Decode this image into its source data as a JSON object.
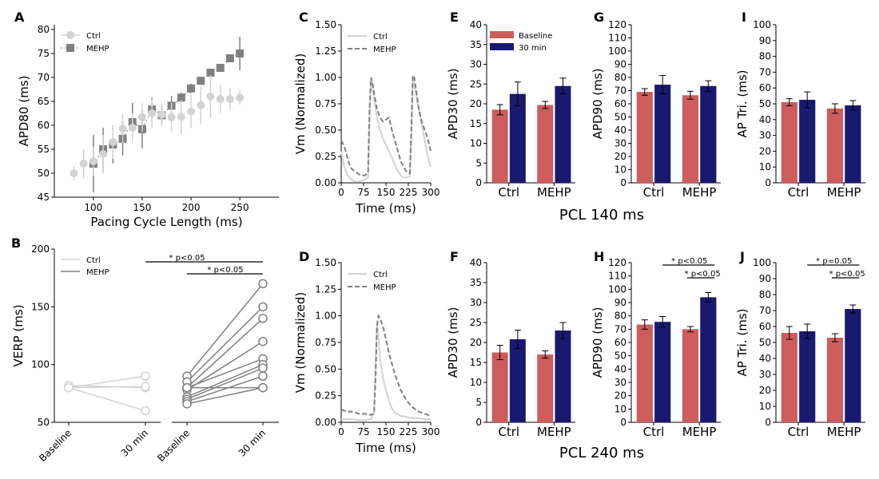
{
  "figure": {
    "row_titles": [
      "PCL 140 ms",
      "PCL 240 ms"
    ],
    "colors": {
      "ctrl": "#d3d3d3",
      "mehp": "#808080",
      "baseline": "#cd5c5c",
      "thirty": "#191970"
    }
  },
  "chart_data": [
    {
      "panel": "A",
      "type": "scatter",
      "xlabel": "Pacing Cycle Length (ms)",
      "ylabel": "APD80 (ms)",
      "xlim": [
        60,
        290
      ],
      "ylim": [
        45,
        81
      ],
      "xticks": [
        100,
        150,
        200,
        250
      ],
      "yticks": [
        45,
        50,
        55,
        60,
        65,
        70,
        75,
        80
      ],
      "legend": [
        "Ctrl",
        "MEHP"
      ],
      "series": [
        {
          "name": "Ctrl",
          "marker": "circle",
          "x": [
            80,
            90,
            100,
            110,
            120,
            130,
            140,
            150,
            160,
            170,
            180,
            190,
            200,
            210,
            220,
            230,
            240,
            250
          ],
          "y": [
            50,
            52,
            52.5,
            54,
            56.5,
            59.3,
            59.5,
            61.7,
            62.5,
            62.2,
            61.7,
            61.8,
            62.9,
            64.2,
            66,
            65.5,
            65.5,
            65.8
          ],
          "err": [
            1.5,
            3,
            3,
            4,
            3.5,
            3,
            3,
            3,
            3,
            2.5,
            3,
            3.5,
            3.5,
            4,
            4.5,
            3,
            2.3,
            1.5
          ]
        },
        {
          "name": "MEHP",
          "marker": "square",
          "x": [
            100,
            110,
            120,
            130,
            140,
            150,
            160,
            170,
            180,
            190,
            200,
            210,
            220,
            230,
            240,
            250
          ],
          "y": [
            52,
            55,
            56,
            57.2,
            60.7,
            59.2,
            63.3,
            62.1,
            64.1,
            65.8,
            67.7,
            69.3,
            71,
            72,
            74,
            75
          ],
          "err": [
            6,
            4.5,
            4,
            3.5,
            4,
            4,
            2.5,
            2,
            2,
            1,
            1,
            0.5,
            0.5,
            0.5,
            0.5,
            3.5
          ]
        }
      ]
    },
    {
      "panel": "B",
      "type": "line",
      "ylabel": "VERP (ms)",
      "ylim": [
        50,
        200
      ],
      "yticks": [
        50,
        100,
        150,
        200
      ],
      "categories": [
        "Baseline",
        "30 min"
      ],
      "legend": [
        "Ctrl",
        "MEHP"
      ],
      "groups": [
        {
          "name": "Ctrl",
          "pairs": [
            [
              80,
              90
            ],
            [
              82,
              80
            ],
            [
              80,
              81
            ],
            [
              80,
              60
            ]
          ]
        },
        {
          "name": "MEHP",
          "pairs": [
            [
              90,
              170
            ],
            [
              85,
              150
            ],
            [
              80,
              140
            ],
            [
              78,
              120
            ],
            [
              80,
              105
            ],
            [
              72,
              100
            ],
            [
              70,
              97
            ],
            [
              68,
              90
            ],
            [
              66,
              80
            ],
            [
              80,
              80
            ]
          ]
        }
      ],
      "annotations": [
        "* p<0.05",
        "* p<0.05"
      ]
    },
    {
      "panel": "C",
      "type": "line",
      "xlabel": "Time (ms)",
      "ylabel": "Vm (Normalized)",
      "xlim": [
        0,
        300
      ],
      "ylim": [
        0,
        1.5
      ],
      "xticks": [
        0,
        75,
        150,
        225,
        300
      ],
      "yticks": [
        0,
        0.25,
        0.5,
        0.75,
        1.0,
        1.25,
        1.5
      ],
      "legend": [
        "Ctrl",
        "MEHP"
      ],
      "series": [
        {
          "name": "Ctrl",
          "style": "solid",
          "x": [
            0,
            10,
            20,
            30,
            40,
            50,
            60,
            70,
            80,
            90,
            95,
            100,
            105,
            110,
            120,
            130,
            140,
            150,
            160,
            170,
            180,
            190,
            200,
            210,
            220,
            230,
            235,
            240,
            245,
            250,
            260,
            270,
            280,
            290,
            300
          ],
          "y": [
            0.3,
            0.15,
            0.08,
            0.04,
            0.02,
            0.01,
            0.01,
            0.02,
            0.03,
            0.05,
            0.6,
            0.98,
            0.9,
            0.8,
            0.62,
            0.5,
            0.42,
            0.36,
            0.3,
            0.24,
            0.17,
            0.11,
            0.07,
            0.05,
            0.05,
            0.06,
            0.4,
            0.96,
            0.95,
            0.85,
            0.7,
            0.55,
            0.4,
            0.25,
            0.15
          ]
        },
        {
          "name": "MEHP",
          "style": "dashed",
          "x": [
            0,
            10,
            20,
            30,
            40,
            50,
            60,
            70,
            80,
            90,
            95,
            100,
            105,
            110,
            120,
            130,
            140,
            150,
            160,
            170,
            180,
            190,
            200,
            210,
            220,
            230,
            235,
            240,
            245,
            250,
            260,
            270,
            280,
            290,
            300
          ],
          "y": [
            0.4,
            0.35,
            0.25,
            0.15,
            0.12,
            0.1,
            0.08,
            0.07,
            0.07,
            0.1,
            0.7,
            1.0,
            0.95,
            0.85,
            0.7,
            0.62,
            0.58,
            0.6,
            0.62,
            0.5,
            0.4,
            0.3,
            0.2,
            0.15,
            0.1,
            0.09,
            0.5,
            1.02,
            1.0,
            0.9,
            0.7,
            0.58,
            0.5,
            0.42,
            0.3
          ]
        }
      ]
    },
    {
      "panel": "D",
      "type": "line",
      "xlabel": "Time (ms)",
      "ylabel": "Vm (Normalized)",
      "xlim": [
        0,
        300
      ],
      "ylim": [
        0,
        1.5
      ],
      "xticks": [
        0,
        75,
        150,
        225,
        300
      ],
      "yticks": [
        0,
        0.25,
        0.5,
        0.75,
        1.0,
        1.25,
        1.5
      ],
      "legend": [
        "Ctrl",
        "MEHP"
      ],
      "series": [
        {
          "name": "Ctrl",
          "style": "solid",
          "x": [
            0,
            20,
            40,
            60,
            80,
            100,
            110,
            115,
            120,
            125,
            130,
            140,
            150,
            160,
            170,
            180,
            200,
            220,
            240,
            260,
            280,
            300
          ],
          "y": [
            0.03,
            0.03,
            0.03,
            0.02,
            0.02,
            0.03,
            0.1,
            0.55,
            0.95,
            0.8,
            0.6,
            0.42,
            0.3,
            0.2,
            0.13,
            0.09,
            0.06,
            0.05,
            0.04,
            0.04,
            0.03,
            0.03
          ]
        },
        {
          "name": "MEHP",
          "style": "dashed",
          "x": [
            0,
            20,
            40,
            60,
            80,
            100,
            110,
            115,
            120,
            125,
            130,
            140,
            150,
            160,
            170,
            180,
            200,
            220,
            240,
            260,
            280,
            300
          ],
          "y": [
            0.12,
            0.1,
            0.1,
            0.08,
            0.08,
            0.07,
            0.08,
            0.4,
            0.9,
            1.0,
            0.98,
            0.9,
            0.78,
            0.65,
            0.55,
            0.45,
            0.3,
            0.2,
            0.14,
            0.1,
            0.08,
            0.06
          ]
        }
      ]
    },
    {
      "panel": "E",
      "type": "bar",
      "ylabel": "APD30 (ms)",
      "ylim": [
        0,
        40
      ],
      "yticks": [
        0,
        5,
        10,
        15,
        20,
        25,
        30,
        35,
        40
      ],
      "categories": [
        "Ctrl",
        "MEHP"
      ],
      "legend": [
        "Baseline",
        "30 min"
      ],
      "series": [
        {
          "name": "Baseline",
          "values": [
            18.5,
            19.7
          ],
          "err": [
            1.3,
            0.9
          ]
        },
        {
          "name": "30 min",
          "values": [
            22.5,
            24.5
          ],
          "err": [
            3,
            2
          ]
        }
      ]
    },
    {
      "panel": "G",
      "type": "bar",
      "ylabel": "APD90 (ms)",
      "ylim": [
        0,
        120
      ],
      "yticks": [
        0,
        10,
        20,
        30,
        40,
        50,
        60,
        70,
        80,
        90,
        100,
        110,
        120
      ],
      "categories": [
        "Ctrl",
        "MEHP"
      ],
      "legend": [],
      "series": [
        {
          "name": "Baseline",
          "values": [
            69,
            66.5
          ],
          "err": [
            2.5,
            3
          ]
        },
        {
          "name": "30 min",
          "values": [
            74.5,
            73.5
          ],
          "err": [
            7,
            4
          ]
        }
      ]
    },
    {
      "panel": "I",
      "type": "bar",
      "ylabel": "AP Tri. (ms)",
      "ylim": [
        0,
        100
      ],
      "yticks": [
        0,
        10,
        20,
        30,
        40,
        50,
        60,
        70,
        80,
        90,
        100
      ],
      "categories": [
        "Ctrl",
        "MEHP"
      ],
      "legend": [],
      "series": [
        {
          "name": "Baseline",
          "values": [
            51,
            47
          ],
          "err": [
            2.2,
            3
          ]
        },
        {
          "name": "30 min",
          "values": [
            52.5,
            49
          ],
          "err": [
            5,
            3
          ]
        }
      ]
    },
    {
      "panel": "F",
      "type": "bar",
      "ylabel": "APD30 (ms)",
      "ylim": [
        0,
        40
      ],
      "yticks": [
        0,
        5,
        10,
        15,
        20,
        25,
        30,
        35,
        40
      ],
      "categories": [
        "Ctrl",
        "MEHP"
      ],
      "legend": [],
      "series": [
        {
          "name": "Baseline",
          "values": [
            17.5,
            17
          ],
          "err": [
            1.8,
            0.9
          ]
        },
        {
          "name": "30 min",
          "values": [
            20.8,
            23
          ],
          "err": [
            2.3,
            2
          ]
        }
      ]
    },
    {
      "panel": "H",
      "type": "bar",
      "ylabel": "APD90 (ms)",
      "ylim": [
        0,
        120
      ],
      "yticks": [
        0,
        10,
        20,
        30,
        40,
        50,
        60,
        70,
        80,
        90,
        100,
        110,
        120
      ],
      "categories": [
        "Ctrl",
        "MEHP"
      ],
      "legend": [],
      "series": [
        {
          "name": "Baseline",
          "values": [
            73.5,
            70
          ],
          "err": [
            3.5,
            2
          ]
        },
        {
          "name": "30 min",
          "values": [
            75.5,
            94
          ],
          "err": [
            4,
            3.5
          ]
        }
      ],
      "annotations": [
        "* p<0.05",
        "* p<0.05"
      ]
    },
    {
      "panel": "J",
      "type": "bar",
      "ylabel": "AP Tri. (ms)",
      "ylim": [
        0,
        100
      ],
      "yticks": [
        0,
        10,
        20,
        30,
        40,
        50,
        60,
        70,
        80,
        90,
        100
      ],
      "categories": [
        "Ctrl",
        "MEHP"
      ],
      "legend": [],
      "series": [
        {
          "name": "Baseline",
          "values": [
            56,
            53
          ],
          "err": [
            4,
            2.5
          ]
        },
        {
          "name": "30 min",
          "values": [
            57,
            71
          ],
          "err": [
            4.5,
            2.5
          ]
        }
      ],
      "annotations": [
        "* p=0.05",
        "* p<0.05"
      ]
    }
  ]
}
